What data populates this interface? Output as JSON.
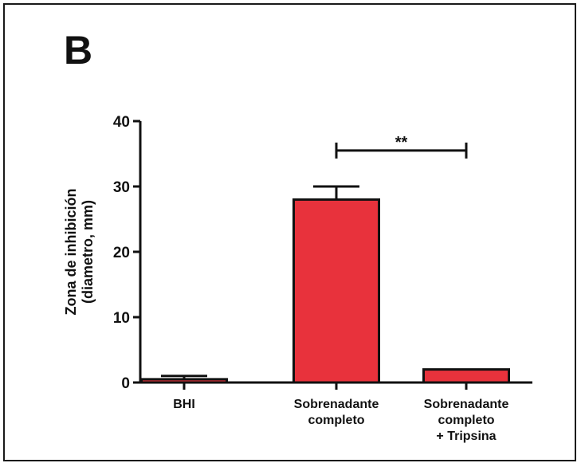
{
  "panel_label": "B",
  "chart_data": {
    "type": "bar",
    "categories": [
      [
        "BHI"
      ],
      [
        "Sobrenadante",
        "completo"
      ],
      [
        "Sobrenadante",
        "completo",
        "+ Tripsina"
      ]
    ],
    "values": [
      0.5,
      28.0,
      2.0
    ],
    "errors": [
      0.5,
      2.0,
      0.0
    ],
    "ylabel": [
      "Zona de inhibición",
      "(diametro, mm)"
    ],
    "ylim": [
      0,
      40
    ],
    "yticks": [
      0,
      10,
      20,
      30,
      40
    ],
    "significance": {
      "from": 1,
      "to": 2,
      "label": "**",
      "y": 35.5
    },
    "bar_color": "#e8323c",
    "edge_color": "#111111",
    "grid": false,
    "legend": "none"
  }
}
